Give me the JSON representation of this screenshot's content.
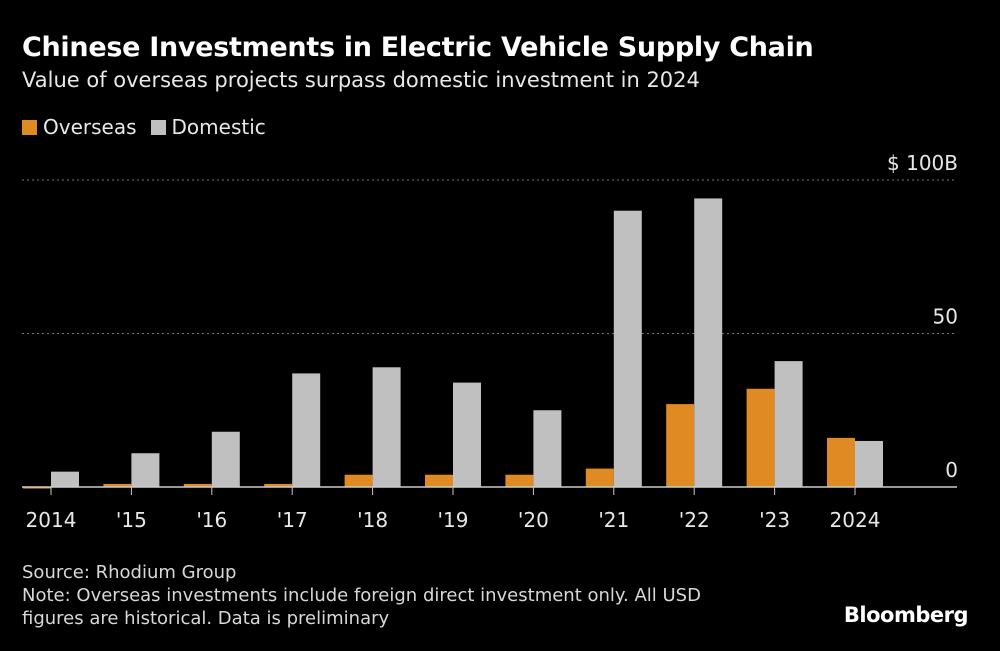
{
  "chart_data": {
    "type": "bar",
    "title": "Chinese Investments in Electric Vehicle Supply Chain",
    "subtitle": "Value of overseas projects surpass domestic investment in 2024",
    "categories": [
      "2014",
      "'15",
      "'16",
      "'17",
      "'18",
      "'19",
      "'20",
      "'21",
      "'22",
      "'23",
      "2024"
    ],
    "series": [
      {
        "name": "Overseas",
        "color": "#e08a24",
        "values": [
          -0.5,
          1,
          1,
          1,
          4,
          4,
          4,
          6,
          27,
          32,
          16
        ]
      },
      {
        "name": "Domestic",
        "color": "#c0c0c0",
        "values": [
          5,
          11,
          18,
          37,
          39,
          34,
          25,
          90,
          94,
          41,
          15
        ]
      }
    ],
    "ylim": [
      0,
      100
    ],
    "yticks": [
      {
        "value": 0,
        "label": "0"
      },
      {
        "value": 50,
        "label": "50"
      },
      {
        "value": 100,
        "label": "$ 100B"
      }
    ],
    "grid": true,
    "legend_placement": "top-left",
    "source": "Source: Rhodium Group",
    "note_lines": [
      "Note: Overseas investments include foreign direct investment only. All USD",
      "figures are historical. Data is preliminary"
    ],
    "brand": "Bloomberg"
  }
}
